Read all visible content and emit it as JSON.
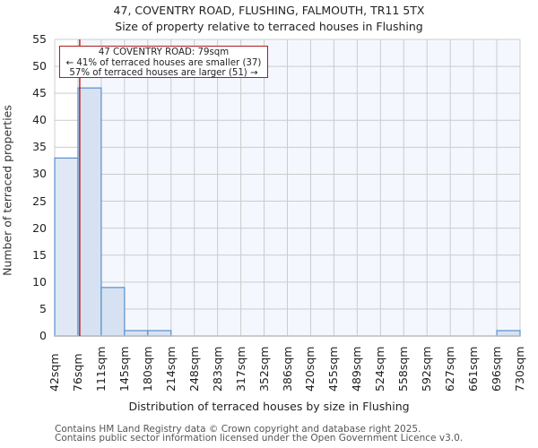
{
  "title": {
    "line1": "47, COVENTRY ROAD, FLUSHING, FALMOUTH, TR11 5TX",
    "line2": "Size of property relative to terraced houses in Flushing"
  },
  "axes": {
    "ylabel": "Number of terraced properties",
    "xlabel": "Distribution of terraced houses by size in Flushing"
  },
  "annotation": {
    "line1": "47 COVENTRY ROAD: 79sqm",
    "line2": "← 41% of terraced houses are smaller (37)",
    "line3": "57% of terraced houses are larger (51) →"
  },
  "footer": {
    "line1": "Contains HM Land Registry data © Crown copyright and database right 2025.",
    "line2": "Contains public sector information licensed under the Open Government Licence v3.0."
  },
  "colors": {
    "bar_fill": "#d6e2f2",
    "bar_fill_left": "#dfe8f4",
    "bar_edge": "#5b8fcc",
    "marker_line": "#c00000",
    "plot_bg": "#f4f7fd",
    "grid": "#cccccc"
  },
  "chart_data": {
    "type": "bar",
    "title": "47, COVENTRY ROAD, FLUSHING, FALMOUTH, TR11 5TX — Size of property relative to terraced houses in Flushing",
    "xlabel": "Distribution of terraced houses by size in Flushing",
    "ylabel": "Number of terraced properties",
    "bin_edges": [
      42,
      76,
      111,
      145,
      180,
      214,
      248,
      283,
      317,
      352,
      386,
      420,
      455,
      489,
      524,
      558,
      592,
      627,
      661,
      696,
      730
    ],
    "categories": [
      "42sqm",
      "76sqm",
      "111sqm",
      "145sqm",
      "180sqm",
      "214sqm",
      "248sqm",
      "283sqm",
      "317sqm",
      "352sqm",
      "386sqm",
      "420sqm",
      "455sqm",
      "489sqm",
      "524sqm",
      "558sqm",
      "592sqm",
      "627sqm",
      "661sqm",
      "696sqm",
      "730sqm"
    ],
    "values": [
      33,
      46,
      9,
      1,
      1,
      0,
      0,
      0,
      0,
      0,
      0,
      0,
      0,
      0,
      0,
      0,
      0,
      0,
      0,
      1
    ],
    "yticks": [
      0,
      5,
      10,
      15,
      20,
      25,
      30,
      35,
      40,
      45,
      50,
      55
    ],
    "ylim": [
      0,
      55
    ],
    "grid": true,
    "marker": {
      "value": 79,
      "label": "47 COVENTRY ROAD: 79sqm"
    },
    "annotations": [
      "47 COVENTRY ROAD: 79sqm",
      "← 41% of terraced houses are smaller (37)",
      "57% of terraced houses are larger (51) →"
    ]
  }
}
